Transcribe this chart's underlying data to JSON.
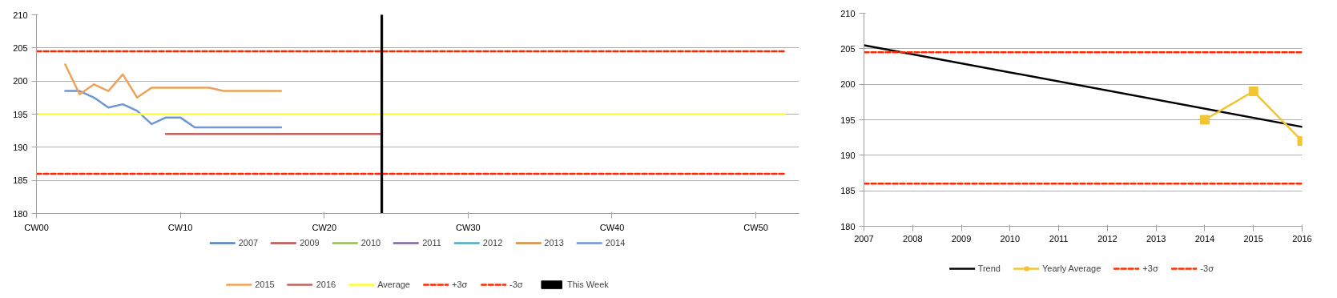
{
  "chart_data": [
    {
      "type": "line",
      "categories": [
        "CW00",
        null,
        null,
        null,
        null,
        null,
        null,
        null,
        null,
        null,
        "CW10",
        null,
        null,
        null,
        null,
        null,
        null,
        null,
        null,
        null,
        "CW20",
        null,
        null,
        null,
        null,
        null,
        null,
        null,
        null,
        null,
        "CW30",
        null,
        null,
        null,
        null,
        null,
        null,
        null,
        null,
        null,
        "CW40",
        null,
        null,
        null,
        null,
        null,
        null,
        null,
        null,
        null,
        "CW50",
        null,
        null,
        null
      ],
      "ylim": [
        180,
        210
      ],
      "yticks": [
        180,
        185,
        190,
        195,
        200,
        205,
        210
      ],
      "grid": "y",
      "legend": "bottom",
      "series": [
        {
          "name": "2007",
          "color": "#4f81bd",
          "values": [
            null,
            null,
            null,
            null,
            null,
            null,
            null,
            null,
            null,
            null,
            null,
            null,
            null,
            null,
            null,
            null,
            null,
            null,
            null,
            null,
            null,
            null,
            null,
            null,
            null,
            null,
            null,
            null,
            null,
            null,
            null,
            null,
            null,
            null,
            null,
            null,
            null,
            null,
            null,
            null,
            null,
            null,
            null,
            null,
            null,
            null,
            null,
            null,
            null,
            null,
            null,
            null,
            null,
            null
          ]
        },
        {
          "name": "2009",
          "color": "#c0504d",
          "values": [
            null,
            null,
            null,
            null,
            null,
            null,
            null,
            null,
            null,
            null,
            null,
            null,
            null,
            null,
            null,
            null,
            null,
            null,
            null,
            null,
            null,
            null,
            null,
            null,
            null,
            null,
            null,
            null,
            null,
            null,
            null,
            null,
            null,
            null,
            null,
            null,
            null,
            null,
            null,
            null,
            null,
            null,
            null,
            null,
            null,
            null,
            null,
            null,
            null,
            null,
            null,
            null,
            null,
            null
          ]
        },
        {
          "name": "2010",
          "color": "#9bbb59",
          "values": [
            null,
            null,
            null,
            null,
            null,
            null,
            null,
            null,
            null,
            null,
            null,
            null,
            null,
            null,
            null,
            null,
            null,
            null,
            null,
            null,
            null,
            null,
            null,
            null,
            null,
            null,
            null,
            null,
            null,
            null,
            null,
            null,
            null,
            null,
            null,
            null,
            null,
            null,
            null,
            null,
            null,
            null,
            null,
            null,
            null,
            null,
            null,
            null,
            null,
            null,
            null,
            null,
            null,
            null
          ]
        },
        {
          "name": "2011",
          "color": "#8064a2",
          "values": [
            null,
            null,
            null,
            null,
            null,
            null,
            null,
            null,
            null,
            null,
            null,
            null,
            null,
            null,
            null,
            null,
            null,
            null,
            null,
            null,
            null,
            null,
            null,
            null,
            null,
            null,
            null,
            null,
            null,
            null,
            null,
            null,
            null,
            null,
            null,
            null,
            null,
            null,
            null,
            null,
            null,
            null,
            null,
            null,
            null,
            null,
            null,
            null,
            null,
            null,
            null,
            null,
            null,
            null
          ]
        },
        {
          "name": "2012",
          "color": "#4bacc6",
          "values": [
            null,
            null,
            null,
            null,
            null,
            null,
            null,
            null,
            null,
            null,
            null,
            null,
            null,
            null,
            null,
            null,
            null,
            null,
            null,
            null,
            null,
            null,
            null,
            null,
            null,
            null,
            null,
            null,
            null,
            null,
            null,
            null,
            null,
            null,
            null,
            null,
            null,
            null,
            null,
            null,
            null,
            null,
            null,
            null,
            null,
            null,
            null,
            null,
            null,
            null,
            null,
            null,
            null,
            null
          ]
        },
        {
          "name": "2013",
          "color": "#d9883c",
          "values": [
            null,
            null,
            null,
            null,
            null,
            null,
            null,
            null,
            null,
            null,
            null,
            null,
            null,
            null,
            null,
            null,
            null,
            null,
            null,
            null,
            null,
            null,
            null,
            null,
            null,
            null,
            null,
            null,
            null,
            null,
            null,
            null,
            null,
            null,
            null,
            null,
            null,
            null,
            null,
            null,
            null,
            null,
            null,
            null,
            null,
            null,
            null,
            null,
            null,
            null,
            null,
            null,
            null,
            null
          ]
        },
        {
          "name": "2014",
          "color": "#7097d2",
          "values": [
            null,
            null,
            198.5,
            198.5,
            197.5,
            196,
            196.5,
            195.5,
            193.5,
            194.5,
            194.5,
            193,
            193,
            193,
            193,
            193,
            193,
            193,
            null,
            null,
            null,
            null,
            null,
            null,
            null,
            null,
            null,
            null,
            null,
            null,
            null,
            null,
            null,
            null,
            null,
            null,
            null,
            null,
            null,
            null,
            null,
            null,
            null,
            null,
            null,
            null,
            null,
            null,
            null,
            null,
            null,
            null,
            null,
            null
          ]
        },
        {
          "name": "2015",
          "color": "#eda25a",
          "values": [
            null,
            null,
            202.5,
            198,
            199.5,
            198.5,
            201,
            197.5,
            199,
            199,
            199,
            199,
            199,
            198.5,
            198.5,
            198.5,
            198.5,
            198.5,
            null,
            null,
            null,
            null,
            null,
            null,
            null,
            null,
            null,
            null,
            null,
            null,
            null,
            null,
            null,
            null,
            null,
            null,
            null,
            null,
            null,
            null,
            null,
            null,
            null,
            null,
            null,
            null,
            null,
            null,
            null,
            null,
            null,
            null,
            null,
            null
          ]
        },
        {
          "name": "2016",
          "color": "#bd6660",
          "values": [
            null,
            null,
            null,
            null,
            null,
            null,
            null,
            null,
            null,
            192,
            192,
            192,
            192,
            192,
            192,
            192,
            192,
            192,
            192,
            192,
            192,
            192,
            192,
            192,
            192,
            null,
            null,
            null,
            null,
            null,
            null,
            null,
            null,
            null,
            null,
            null,
            null,
            null,
            null,
            null,
            null,
            null,
            null,
            null,
            null,
            null,
            null,
            null,
            null,
            null,
            null,
            null,
            null,
            null
          ]
        },
        {
          "name": "Average",
          "color": "#ffff33",
          "values": [
            195,
            195,
            195,
            195,
            195,
            195,
            195,
            195,
            195,
            195,
            195,
            195,
            195,
            195,
            195,
            195,
            195,
            195,
            195,
            195,
            195,
            195,
            195,
            195,
            195,
            195,
            195,
            195,
            195,
            195,
            195,
            195,
            195,
            195,
            195,
            195,
            195,
            195,
            195,
            195,
            195,
            195,
            195,
            195,
            195,
            195,
            195,
            195,
            195,
            195,
            195,
            195,
            195,
            null
          ]
        },
        {
          "name": "+3σ",
          "color": "#ff2a00",
          "line_style": "dashed",
          "values": [
            204.5,
            204.5,
            204.5,
            204.5,
            204.5,
            204.5,
            204.5,
            204.5,
            204.5,
            204.5,
            204.5,
            204.5,
            204.5,
            204.5,
            204.5,
            204.5,
            204.5,
            204.5,
            204.5,
            204.5,
            204.5,
            204.5,
            204.5,
            204.5,
            204.5,
            204.5,
            204.5,
            204.5,
            204.5,
            204.5,
            204.5,
            204.5,
            204.5,
            204.5,
            204.5,
            204.5,
            204.5,
            204.5,
            204.5,
            204.5,
            204.5,
            204.5,
            204.5,
            204.5,
            204.5,
            204.5,
            204.5,
            204.5,
            204.5,
            204.5,
            204.5,
            204.5,
            204.5,
            null
          ]
        },
        {
          "name": "-3σ",
          "color": "#ff2a00",
          "line_style": "dashed",
          "values": [
            186,
            186,
            186,
            186,
            186,
            186,
            186,
            186,
            186,
            186,
            186,
            186,
            186,
            186,
            186,
            186,
            186,
            186,
            186,
            186,
            186,
            186,
            186,
            186,
            186,
            186,
            186,
            186,
            186,
            186,
            186,
            186,
            186,
            186,
            186,
            186,
            186,
            186,
            186,
            186,
            186,
            186,
            186,
            186,
            186,
            186,
            186,
            186,
            186,
            186,
            186,
            186,
            186,
            null
          ]
        },
        {
          "name": "This Week",
          "color": "#000000",
          "type": "bar",
          "values": [
            null,
            null,
            null,
            null,
            null,
            null,
            null,
            null,
            null,
            null,
            null,
            null,
            null,
            null,
            null,
            null,
            null,
            null,
            null,
            null,
            null,
            null,
            null,
            null,
            210,
            null,
            null,
            null,
            null,
            null,
            null,
            null,
            null,
            null,
            null,
            null,
            null,
            null,
            null,
            null,
            null,
            null,
            null,
            null,
            null,
            null,
            null,
            null,
            null,
            null,
            null,
            null,
            null,
            null
          ]
        }
      ]
    },
    {
      "type": "line",
      "xlim": [
        2007,
        2016
      ],
      "xticks": [
        2007,
        2008,
        2009,
        2010,
        2011,
        2012,
        2013,
        2014,
        2015,
        2016
      ],
      "ylim": [
        180,
        210
      ],
      "yticks": [
        180,
        185,
        190,
        195,
        200,
        205,
        210
      ],
      "grid": "y",
      "legend": "bottom",
      "series": [
        {
          "name": "Trend",
          "color": "#000000",
          "x": [
            2007,
            2016
          ],
          "values": [
            205.5,
            194
          ]
        },
        {
          "name": "Yearly Average",
          "color": "#f2c531",
          "marker": "square",
          "x": [
            2014,
            2015,
            2016
          ],
          "values": [
            195,
            199,
            192
          ]
        },
        {
          "name": "+3σ",
          "color": "#ff2a00",
          "line_style": "dashed",
          "x": [
            2007,
            2016
          ],
          "values": [
            204.5,
            204.5
          ]
        },
        {
          "name": "-3σ",
          "color": "#ff2a00",
          "line_style": "dashed",
          "x": [
            2007,
            2016
          ],
          "values": [
            186,
            186
          ]
        }
      ]
    }
  ]
}
